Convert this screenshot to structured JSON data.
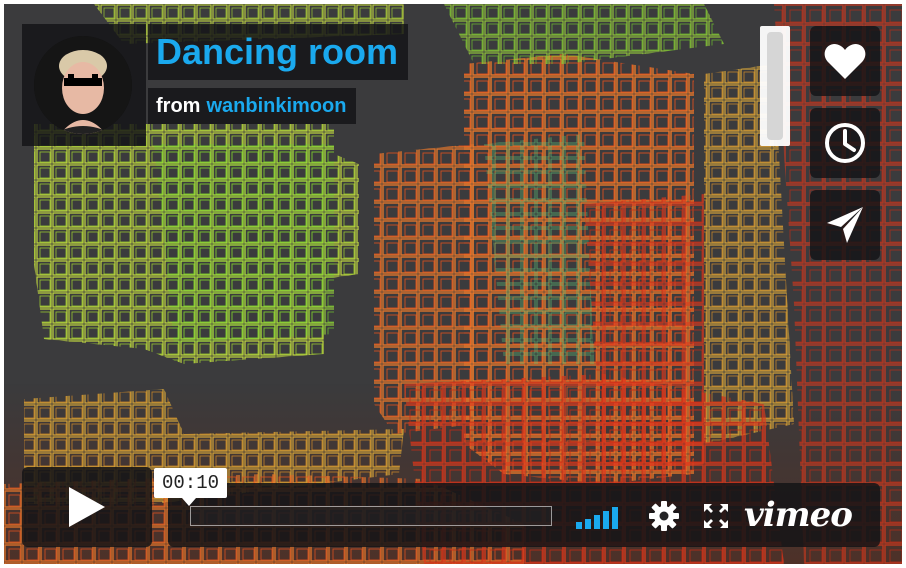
{
  "video": {
    "title": "Dancing room",
    "byline_prefix": "from",
    "author": "wanbinkimoon",
    "current_time": "00:10",
    "progress_fraction": 0.0
  },
  "controls": {
    "play_icon": "play-icon",
    "volume_icon": "volume-icon",
    "settings_icon": "gear-icon",
    "fullscreen_icon": "fullscreen-icon",
    "brand": "vimeo"
  },
  "side_buttons": [
    {
      "name": "like",
      "icon": "heart-icon"
    },
    {
      "name": "watch-later",
      "icon": "clock-icon"
    },
    {
      "name": "share",
      "icon": "paper-plane-icon"
    }
  ],
  "colors": {
    "accent": "#1aa9ee",
    "panel": "#141416",
    "volume": "#1aa9ee"
  }
}
